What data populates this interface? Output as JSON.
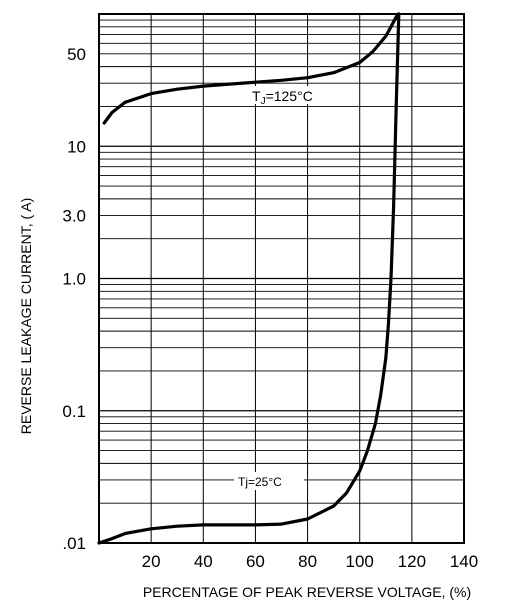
{
  "chart_data": {
    "type": "line",
    "title": "",
    "xlabel": "PERCENTAGE OF PEAK REVERSE VOLTAGE, (%)",
    "ylabel": "REVERSE LEAKAGE CURRENT, ( A)",
    "xlim": [
      0,
      140
    ],
    "ylim": [
      0.01,
      100
    ],
    "yscale": "log",
    "grid": true,
    "x_ticks": [
      20,
      40,
      60,
      80,
      100,
      120,
      140
    ],
    "x_tick_labels": [
      "20",
      "40",
      "60",
      "80",
      "100",
      "120",
      "140"
    ],
    "y_ticks": [
      0.01,
      0.1,
      1.0,
      3.0,
      10,
      50
    ],
    "y_tick_labels": [
      ".01",
      "0.1",
      "1.0",
      "3.0",
      "10",
      "50"
    ],
    "series": [
      {
        "name": "TJ=125°C",
        "label_main": "T",
        "label_sub": "J",
        "label_rest": "=125°C",
        "color": "#000000",
        "x": [
          2,
          5,
          10,
          20,
          30,
          40,
          50,
          60,
          70,
          80,
          90,
          100,
          105,
          110,
          112,
          114,
          115
        ],
        "y": [
          15,
          18,
          21.5,
          25,
          27,
          28.5,
          29.5,
          30.5,
          31.5,
          33,
          36,
          43,
          52,
          68,
          80,
          95,
          100
        ]
      },
      {
        "name": "Tj=25°C",
        "label_main": "Tj=25",
        "label_rest": "°C",
        "color": "#000000",
        "x": [
          0,
          5,
          10,
          20,
          30,
          40,
          50,
          60,
          70,
          80,
          90,
          95,
          100,
          103,
          106,
          108,
          110,
          111,
          112,
          113,
          114,
          115
        ],
        "y": [
          0.01,
          0.0108,
          0.0118,
          0.0128,
          0.0134,
          0.0137,
          0.0137,
          0.0137,
          0.0139,
          0.0152,
          0.019,
          0.024,
          0.035,
          0.05,
          0.08,
          0.13,
          0.25,
          0.45,
          1.0,
          3.5,
          20,
          100
        ]
      }
    ]
  }
}
